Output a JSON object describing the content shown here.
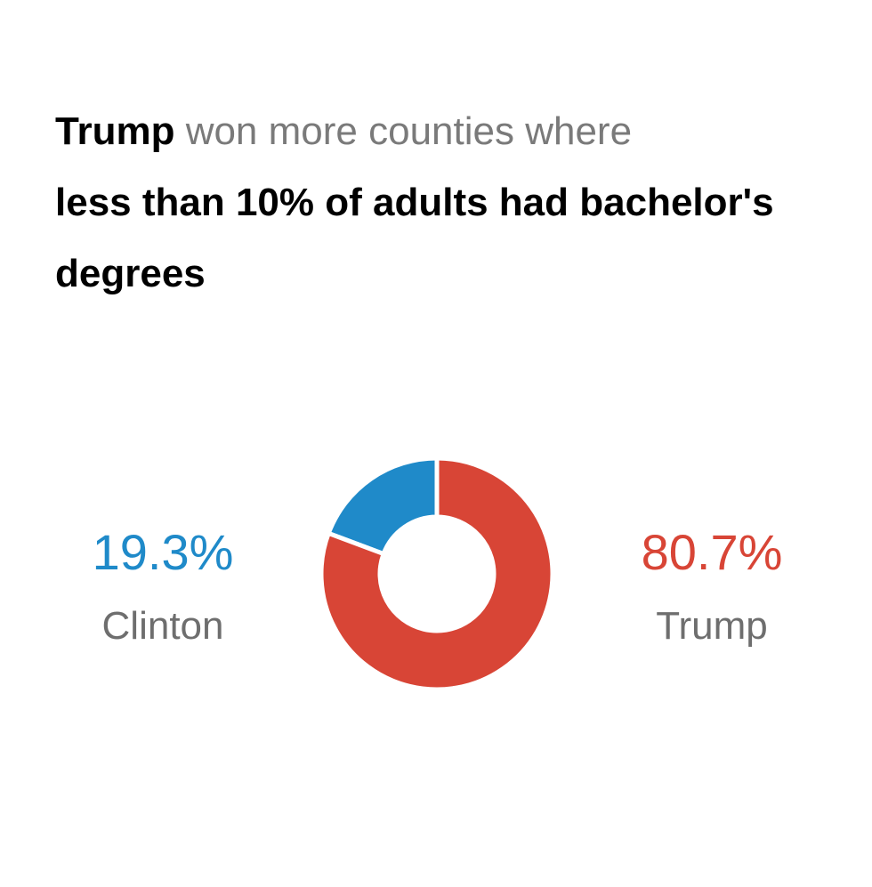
{
  "chart_data": {
    "type": "pie",
    "donut": true,
    "title": [
      "Trump",
      "won more counties where",
      "less than 10% of adults had bachelor's degrees"
    ],
    "categories": [
      "Clinton",
      "Trump"
    ],
    "values": [
      19.3,
      80.7
    ],
    "value_labels": [
      "19.3%",
      "80.7%"
    ],
    "colors": [
      "#1f8ac9",
      "#d84536"
    ]
  }
}
